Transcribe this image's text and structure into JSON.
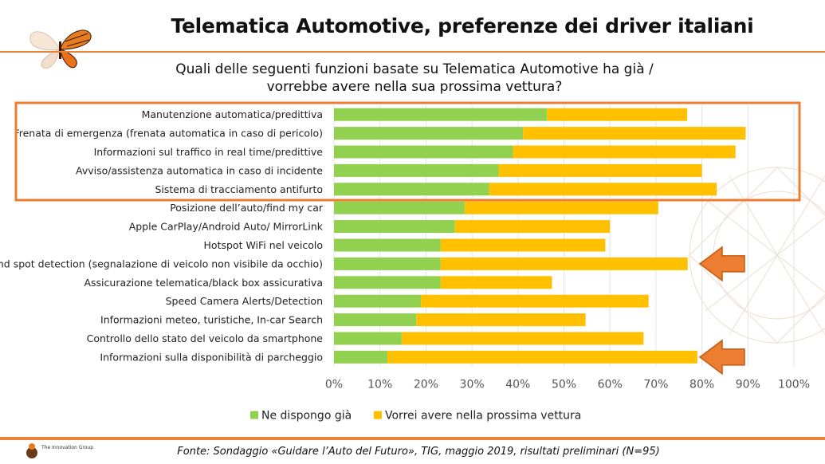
{
  "title": "Telematica Automotive, preferenze dei driver italiani",
  "subtitle_line1": "Quali delle seguenti funzioni basate su Telematica Automotive ha già /",
  "subtitle_line2": "vorrebbe avere nella sua prossima vettura?",
  "source": "Fonte: Sondaggio «Guidare l’Auto del Futuro», TIG, maggio 2019, risultati preliminari (N=95)",
  "brand": "The Innovation Group",
  "colors": {
    "has": "#92d050",
    "wants": "#ffc000",
    "accent": "#ed7d31"
  },
  "icons": [
    "butterfly-logo-icon",
    "innovation-group-logo-icon",
    "left-arrow-icon"
  ],
  "chart_data": {
    "type": "bar",
    "orientation": "horizontal",
    "stacked": true,
    "categories": [
      "Manutenzione automatica/predittiva",
      "Frenata di emergenza (frenata automatica in caso di pericolo)",
      "Informazioni sul traffico in real time/predittive",
      "Avviso/assistenza automatica in caso di incidente",
      "Sistema di tracciamento antifurto",
      "Posizione dell’auto/find my car",
      "Apple CarPlay/Android Auto/ MirrorLink",
      "Hotspot WiFi nel veicolo",
      "Blind spot detection (segnalazione di veicolo non visibile da occhio)",
      "Assicurazione telematica/black box assicurativa",
      "Speed Camera Alerts/Detection",
      "Informazioni meteo, turistiche, In-car Search",
      "Controllo dello stato del veicolo da smartphone",
      "Informazioni sulla disponibilità di parcheggio"
    ],
    "series": [
      {
        "name": "Ne dispongo già",
        "values": [
          46.3,
          41.1,
          38.9,
          35.8,
          33.7,
          28.4,
          26.3,
          23.2,
          23.2,
          23.2,
          18.9,
          17.9,
          14.7,
          11.6
        ]
      },
      {
        "name": "Vorrei avere nella prossima vettura",
        "values": [
          30.5,
          48.4,
          48.4,
          44.2,
          49.5,
          42.1,
          33.7,
          35.8,
          53.7,
          24.2,
          49.5,
          36.8,
          52.6,
          67.4
        ]
      }
    ],
    "xlim": [
      0,
      100
    ],
    "xticks": [
      "0%",
      "10%",
      "20%",
      "30%",
      "40%",
      "50%",
      "60%",
      "70%",
      "80%",
      "90%",
      "100%"
    ],
    "legend": "bottom",
    "highlighted_categories": [
      0,
      1,
      2,
      3,
      4
    ],
    "arrow_categories": [
      8,
      13
    ]
  }
}
